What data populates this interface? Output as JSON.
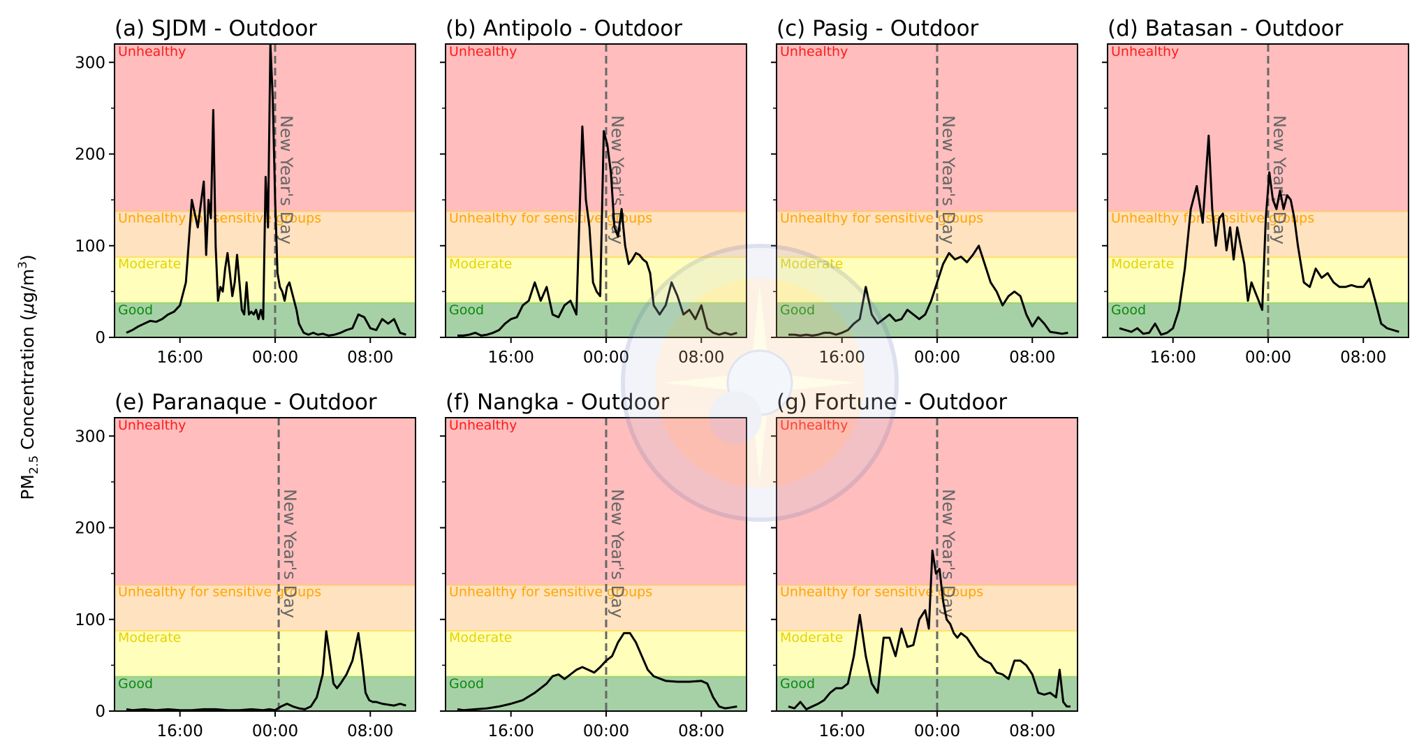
{
  "figure": {
    "ylabel_main": "PM",
    "ylabel_sub": "2.5",
    "ylabel_rest": " Concentration (",
    "ylabel_unit_mu": "μ",
    "ylabel_unit_g": "g/m",
    "ylabel_unit_sup": "3",
    "ylabel_close": ")",
    "marker_label": "New Year's Day",
    "aqi_bands": [
      {
        "name": "Good",
        "min": 0,
        "max": 37.5,
        "fill": "#a6d1a6",
        "line": "#9cd66f",
        "text": "#0a8a0a"
      },
      {
        "name": "Moderate",
        "min": 37.5,
        "max": 87.5,
        "fill": "#ffffbb",
        "line": "#ffe066",
        "text": "#e6d200"
      },
      {
        "name": "Unhealthy for sensitive groups",
        "min": 87.5,
        "max": 137.5,
        "fill": "#ffe2bf",
        "line": "#ffc87a",
        "text": "#ffa500"
      },
      {
        "name": "Unhealthy",
        "min": 137.5,
        "max": 320,
        "fill": "#ffbdbd",
        "line": "#ff9e9e",
        "text": "#ff1a1a"
      }
    ],
    "colors": {
      "line": "#000000",
      "marker": "#666666"
    }
  },
  "chart_data": [
    {
      "type": "line",
      "title": "(a) SJDM - Outdoor",
      "xlabel": "",
      "ylabel": "PM2.5 Concentration (μg/m³)",
      "xlim": [
        10.5,
        35.8
      ],
      "ylim": [
        0,
        320
      ],
      "xticks": [
        16,
        24,
        32
      ],
      "xtick_labels": [
        "16:00",
        "00:00",
        "08:00"
      ],
      "yticks": [
        0,
        100,
        200,
        300
      ],
      "yminor": [
        50,
        150,
        250
      ],
      "vline_x": 24,
      "x": [
        11.5,
        12,
        12.5,
        13,
        13.5,
        14,
        14.5,
        15,
        15.5,
        16,
        16.5,
        17,
        17.5,
        18,
        18.2,
        18.4,
        18.6,
        18.8,
        19.0,
        19.2,
        19.4,
        19.6,
        19.8,
        20.0,
        20.2,
        20.4,
        20.6,
        20.8,
        21.0,
        21.2,
        21.4,
        21.6,
        21.8,
        22.0,
        22.2,
        22.4,
        22.6,
        22.8,
        23.0,
        23.2,
        23.4,
        23.6,
        23.8,
        24.0,
        24.2,
        24.4,
        24.6,
        24.8,
        25.0,
        25.2,
        25.4,
        25.6,
        25.8,
        26.0,
        26.4,
        26.8,
        27.2,
        27.6,
        28,
        28.5,
        29,
        29.5,
        30,
        30.5,
        31,
        31.5,
        32,
        32.5,
        33,
        33.5,
        34,
        34.5,
        35
      ],
      "y": [
        5,
        8,
        12,
        15,
        18,
        17,
        20,
        25,
        28,
        35,
        60,
        150,
        120,
        170,
        90,
        150,
        130,
        248,
        100,
        40,
        55,
        50,
        75,
        92,
        70,
        45,
        60,
        90,
        60,
        30,
        25,
        60,
        25,
        28,
        25,
        30,
        20,
        30,
        20,
        175,
        120,
        320,
        260,
        150,
        70,
        55,
        50,
        40,
        55,
        60,
        50,
        40,
        30,
        15,
        5,
        3,
        5,
        3,
        4,
        2,
        3,
        5,
        8,
        10,
        25,
        22,
        10,
        8,
        20,
        15,
        20,
        5,
        3
      ]
    },
    {
      "type": "line",
      "title": "(b) Antipolo - Outdoor",
      "xlim": [
        10.5,
        35.8
      ],
      "ylim": [
        0,
        320
      ],
      "xticks": [
        16,
        24,
        32
      ],
      "xtick_labels": [
        "16:00",
        "00:00",
        "08:00"
      ],
      "yticks": [
        0,
        100,
        200,
        300
      ],
      "yminor": [
        50,
        150,
        250
      ],
      "vline_x": 24,
      "x": [
        11.5,
        12,
        12.5,
        13,
        13.5,
        14,
        14.5,
        15,
        15.5,
        16,
        16.5,
        17,
        17.5,
        18,
        18.5,
        19,
        19.5,
        20,
        20.5,
        21,
        21.5,
        22,
        22.3,
        22.6,
        22.9,
        23.2,
        23.5,
        23.8,
        24.1,
        24.4,
        24.7,
        25,
        25.3,
        25.6,
        25.9,
        26.2,
        26.5,
        26.8,
        27.1,
        27.4,
        27.7,
        28,
        28.5,
        29,
        29.5,
        30,
        30.5,
        31,
        31.5,
        32,
        32.5,
        33,
        33.5,
        34,
        34.5,
        35
      ],
      "y": [
        2,
        2,
        3,
        5,
        2,
        3,
        5,
        8,
        15,
        20,
        22,
        35,
        40,
        60,
        40,
        55,
        25,
        22,
        35,
        40,
        25,
        230,
        150,
        120,
        60,
        50,
        45,
        225,
        210,
        180,
        120,
        110,
        140,
        100,
        80,
        85,
        92,
        90,
        85,
        82,
        70,
        35,
        25,
        35,
        60,
        45,
        25,
        30,
        20,
        35,
        10,
        5,
        3,
        5,
        3,
        5
      ]
    },
    {
      "type": "line",
      "title": "(c) Pasig - Outdoor",
      "xlim": [
        10.5,
        35.8
      ],
      "ylim": [
        0,
        320
      ],
      "xticks": [
        16,
        24,
        32
      ],
      "xtick_labels": [
        "16:00",
        "00:00",
        "08:00"
      ],
      "yticks": [
        0,
        100,
        200,
        300
      ],
      "yminor": [
        50,
        150,
        250
      ],
      "vline_x": 24,
      "x": [
        11.5,
        12,
        12.5,
        13,
        13.5,
        14,
        14.5,
        15,
        15.5,
        16,
        16.5,
        17,
        17.5,
        18,
        18.5,
        19,
        19.5,
        20,
        20.5,
        21,
        21.5,
        22,
        22.5,
        23,
        23.5,
        24,
        24.5,
        25,
        25.5,
        26,
        26.5,
        27,
        27.5,
        28,
        28.5,
        29,
        29.5,
        30,
        30.5,
        31,
        31.5,
        32,
        32.5,
        33,
        33.5,
        34,
        34.5,
        35
      ],
      "y": [
        3,
        3,
        2,
        3,
        2,
        3,
        5,
        5,
        3,
        5,
        8,
        15,
        20,
        55,
        25,
        15,
        20,
        25,
        18,
        20,
        30,
        25,
        20,
        25,
        40,
        60,
        80,
        92,
        85,
        88,
        82,
        90,
        100,
        80,
        60,
        50,
        35,
        45,
        50,
        45,
        25,
        12,
        22,
        15,
        6,
        5,
        4,
        5
      ]
    },
    {
      "type": "line",
      "title": "(d) Batasan - Outdoor",
      "xlim": [
        10.5,
        35.8
      ],
      "ylim": [
        0,
        320
      ],
      "xticks": [
        16,
        24,
        32
      ],
      "xtick_labels": [
        "16:00",
        "00:00",
        "08:00"
      ],
      "yticks": [
        0,
        100,
        200,
        300
      ],
      "yminor": [
        50,
        150,
        250
      ],
      "vline_x": 24,
      "x": [
        11.5,
        12,
        12.5,
        13,
        13.5,
        14,
        14.5,
        15,
        15.5,
        16,
        16.5,
        17,
        17.5,
        18,
        18.5,
        19,
        19.3,
        19.6,
        19.9,
        20.2,
        20.5,
        20.8,
        21.1,
        21.4,
        21.7,
        22,
        22.3,
        22.6,
        22.9,
        23.2,
        23.5,
        23.8,
        24.1,
        24.4,
        24.7,
        25,
        25.3,
        25.6,
        25.9,
        26.2,
        26.5,
        27,
        27.5,
        28,
        28.5,
        29,
        29.5,
        30,
        30.5,
        31,
        31.5,
        32,
        32.5,
        33,
        33.5,
        34,
        34.5,
        35
      ],
      "y": [
        10,
        8,
        6,
        10,
        4,
        5,
        15,
        3,
        5,
        10,
        30,
        75,
        140,
        165,
        125,
        220,
        140,
        100,
        130,
        135,
        95,
        120,
        85,
        120,
        100,
        80,
        40,
        60,
        50,
        40,
        30,
        130,
        180,
        150,
        140,
        160,
        140,
        155,
        150,
        130,
        100,
        60,
        55,
        75,
        65,
        70,
        60,
        55,
        55,
        57,
        55,
        55,
        64,
        40,
        15,
        10,
        8,
        6
      ]
    },
    {
      "type": "line",
      "title": "(e) Paranaque - Outdoor",
      "xlim": [
        10.5,
        35.8
      ],
      "ylim": [
        0,
        320
      ],
      "xticks": [
        16,
        24,
        32
      ],
      "xtick_labels": [
        "16:00",
        "00:00",
        "08:00"
      ],
      "yticks": [
        0,
        100,
        200,
        300
      ],
      "yminor": [
        50,
        150,
        250
      ],
      "vline_x": 24.3,
      "x": [
        11.5,
        12,
        13,
        14,
        15,
        16,
        17,
        18,
        19,
        20,
        21,
        22,
        23,
        23.5,
        24,
        24.5,
        25,
        25.5,
        26,
        26.5,
        27,
        27.5,
        28,
        28.3,
        28.6,
        28.9,
        29.2,
        29.5,
        30,
        30.5,
        31,
        31.3,
        31.6,
        31.9,
        32.2,
        32.5,
        33,
        33.5,
        34,
        34.5,
        35
      ],
      "y": [
        2,
        1,
        2,
        1,
        2,
        1,
        1,
        2,
        2,
        1,
        1,
        2,
        1,
        2,
        1,
        5,
        8,
        5,
        3,
        2,
        5,
        15,
        40,
        87,
        60,
        30,
        25,
        30,
        40,
        55,
        85,
        55,
        20,
        12,
        10,
        10,
        8,
        7,
        6,
        8,
        6
      ]
    },
    {
      "type": "line",
      "title": "(f) Nangka - Outdoor",
      "xlim": [
        10.5,
        35.8
      ],
      "ylim": [
        0,
        320
      ],
      "xticks": [
        16,
        24,
        32
      ],
      "xtick_labels": [
        "16:00",
        "00:00",
        "08:00"
      ],
      "yticks": [
        0,
        100,
        200,
        300
      ],
      "yminor": [
        50,
        150,
        250
      ],
      "vline_x": 24,
      "x": [
        11.5,
        12,
        13,
        14,
        15,
        16,
        17,
        18,
        19,
        19.5,
        20,
        20.5,
        21,
        21.5,
        22,
        22.5,
        23,
        23.5,
        24,
        24.5,
        25,
        25.5,
        26,
        26.5,
        27,
        27.5,
        28,
        29,
        30,
        31,
        32,
        32.5,
        33,
        33.5,
        34,
        34.5,
        35
      ],
      "y": [
        2,
        1,
        2,
        3,
        5,
        8,
        12,
        20,
        30,
        38,
        40,
        35,
        40,
        45,
        48,
        45,
        42,
        48,
        55,
        60,
        75,
        85,
        85,
        75,
        60,
        45,
        38,
        33,
        32,
        32,
        33,
        30,
        15,
        5,
        3,
        4,
        5
      ]
    },
    {
      "type": "line",
      "title": "(g) Fortune - Outdoor",
      "xlim": [
        10.5,
        35.8
      ],
      "ylim": [
        0,
        320
      ],
      "xticks": [
        16,
        24,
        32
      ],
      "xtick_labels": [
        "16:00",
        "00:00",
        "08:00"
      ],
      "yticks": [
        0,
        100,
        200,
        300
      ],
      "yminor": [
        50,
        150,
        250
      ],
      "vline_x": 24,
      "x": [
        11.5,
        12,
        12.5,
        13,
        13.5,
        14,
        14.5,
        15,
        15.5,
        16,
        16.5,
        17,
        17.5,
        18,
        18.5,
        19,
        19.5,
        20,
        20.5,
        21,
        21.5,
        22,
        22.5,
        23,
        23.3,
        23.6,
        23.9,
        24.2,
        24.5,
        24.8,
        25.1,
        25.4,
        25.7,
        26,
        26.5,
        27,
        27.5,
        28,
        28.5,
        29,
        29.5,
        30,
        30.5,
        31,
        31.5,
        32,
        32.5,
        33,
        33.5,
        34,
        34.3,
        34.6,
        34.9,
        35.2
      ],
      "y": [
        5,
        3,
        10,
        2,
        5,
        8,
        12,
        20,
        25,
        25,
        30,
        60,
        105,
        60,
        30,
        20,
        80,
        80,
        60,
        90,
        70,
        72,
        100,
        110,
        90,
        175,
        150,
        155,
        120,
        100,
        95,
        85,
        80,
        85,
        80,
        70,
        60,
        55,
        52,
        42,
        40,
        35,
        55,
        55,
        50,
        40,
        20,
        18,
        20,
        15,
        45,
        10,
        5,
        5
      ]
    }
  ]
}
